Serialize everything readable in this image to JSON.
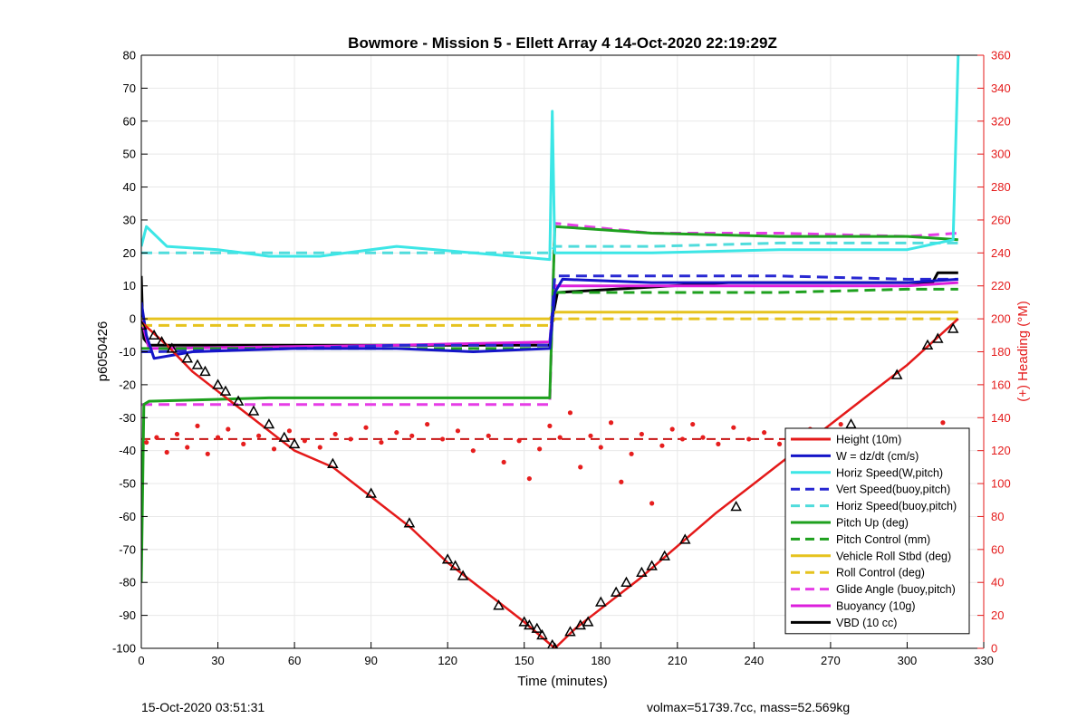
{
  "chart_data": {
    "type": "line",
    "title": "Bowmore - Mission 5 - Ellett Array 4 14-Oct-2020 22:19:29Z",
    "xlabel": "Time (minutes)",
    "ylabel_left": "p6050426",
    "ylabel_right": "(+) Heading (°M)",
    "xlim": [
      0,
      330
    ],
    "ylim_left": [
      -100,
      80
    ],
    "ylim_right": [
      0,
      360
    ],
    "x_ticks": [
      0,
      30,
      60,
      90,
      120,
      150,
      180,
      210,
      240,
      270,
      300,
      330
    ],
    "y_ticks_left": [
      80,
      70,
      60,
      50,
      40,
      30,
      20,
      10,
      0,
      -10,
      -20,
      -30,
      -40,
      -50,
      -60,
      -70,
      -80,
      -90,
      -100
    ],
    "y_ticks_right": [
      360,
      340,
      320,
      300,
      280,
      260,
      240,
      220,
      200,
      180,
      160,
      140,
      120,
      100,
      80,
      60,
      40,
      20,
      0
    ],
    "grid": true,
    "legend_position": "bottom-right",
    "series": [
      {
        "name": "Height (10m)",
        "color": "#e41a1a",
        "style": "solid",
        "x": [
          0,
          10,
          20,
          30,
          45,
          60,
          75,
          90,
          105,
          120,
          135,
          150,
          162,
          170,
          180,
          195,
          210,
          225,
          240,
          255,
          270,
          285,
          300,
          310,
          320
        ],
        "y": [
          -1,
          -8,
          -16,
          -22,
          -31,
          -40,
          -45,
          -54,
          -63,
          -74,
          -83,
          -92,
          -100,
          -94,
          -88,
          -79,
          -69,
          -59,
          -50,
          -41,
          -32,
          -23,
          -14,
          -7,
          0
        ]
      },
      {
        "name": "W = dz/dt (cm/s)",
        "color": "#1414c8",
        "style": "solid",
        "x": [
          0,
          2,
          5,
          20,
          60,
          100,
          130,
          160,
          162,
          165,
          200,
          250,
          300,
          320
        ],
        "y": [
          5,
          -5,
          -12,
          -10,
          -9,
          -9,
          -10,
          -9,
          8,
          12,
          11,
          11,
          11,
          12
        ]
      },
      {
        "name": "Horiz Speed(W,pitch)",
        "color": "#3ce6e6",
        "style": "solid",
        "x": [
          0,
          2,
          10,
          30,
          50,
          70,
          100,
          130,
          160,
          161,
          162,
          165,
          200,
          250,
          300,
          318,
          320
        ],
        "y": [
          22,
          28,
          22,
          21,
          19,
          19,
          22,
          20,
          18,
          63,
          20,
          20,
          20,
          21,
          21,
          24,
          80
        ]
      },
      {
        "name": "Vert Speed(buoy,pitch)",
        "color": "#2828d2",
        "style": "dashed",
        "x": [
          0,
          5,
          60,
          100,
          160,
          162,
          200,
          250,
          300,
          320
        ],
        "y": [
          -10,
          -10,
          -9,
          -8,
          -8,
          13,
          13,
          13,
          12,
          12
        ]
      },
      {
        "name": "Horiz Speed(buoy,pitch)",
        "color": "#50dcdc",
        "style": "dashed",
        "x": [
          0,
          10,
          60,
          100,
          160,
          162,
          200,
          250,
          300,
          320
        ],
        "y": [
          20,
          20,
          20,
          20,
          20,
          22,
          22,
          23,
          23,
          23
        ]
      },
      {
        "name": "Pitch Up (deg)",
        "color": "#1ea01e",
        "style": "solid",
        "x": [
          0,
          1,
          3,
          50,
          100,
          160,
          162,
          200,
          250,
          300,
          320
        ],
        "y": [
          -80,
          -26,
          -25,
          -24,
          -24,
          -24,
          28,
          26,
          25,
          25,
          24
        ]
      },
      {
        "name": "Pitch Control (mm)",
        "color": "#1ea01e",
        "style": "dashed",
        "x": [
          0,
          5,
          100,
          160,
          162,
          200,
          250,
          300,
          320
        ],
        "y": [
          -9,
          -9,
          -9,
          -9,
          8,
          8,
          8,
          9,
          9
        ]
      },
      {
        "name": "Vehicle Roll Stbd (deg)",
        "color": "#e6c31e",
        "style": "solid",
        "x": [
          0,
          10,
          50,
          100,
          160,
          162,
          200,
          250,
          300,
          320
        ],
        "y": [
          0,
          0,
          0,
          0,
          0,
          2,
          2,
          2,
          2,
          2
        ]
      },
      {
        "name": "Roll Control (deg)",
        "color": "#e6c31e",
        "style": "dashed",
        "x": [
          0,
          10,
          100,
          160,
          162,
          200,
          250,
          300,
          320
        ],
        "y": [
          -2,
          -2,
          -2,
          -2,
          0,
          0,
          0,
          0,
          0
        ]
      },
      {
        "name": "Glide Angle (buoy,pitch)",
        "color": "#e63ce6",
        "style": "dashed",
        "x": [
          0,
          2,
          100,
          160,
          162,
          200,
          250,
          300,
          320
        ],
        "y": [
          -26,
          -26,
          -26,
          -26,
          29,
          26,
          26,
          25,
          26
        ]
      },
      {
        "name": "Buoyancy (10g)",
        "color": "#dc1edc",
        "style": "solid",
        "x": [
          0,
          3,
          100,
          160,
          162,
          250,
          300,
          320
        ],
        "y": [
          0,
          -9,
          -8,
          -7,
          10,
          10,
          10,
          11
        ]
      },
      {
        "name": "VBD (10 cc)",
        "color": "#000000",
        "style": "solid",
        "x": [
          0,
          0.5,
          1,
          3,
          160,
          161,
          163,
          230,
          310,
          312,
          320
        ],
        "y": [
          13,
          0,
          -6,
          -8,
          -8,
          0,
          8,
          11,
          11,
          14,
          14
        ]
      }
    ],
    "heading_ref": {
      "color": "#c81414",
      "style": "dashed",
      "value_right": 127,
      "x": [
        0,
        320
      ]
    },
    "heading_points": {
      "color": "#e61e1e",
      "x": [
        2,
        6,
        10,
        14,
        18,
        22,
        26,
        30,
        34,
        40,
        46,
        52,
        58,
        64,
        70,
        76,
        82,
        88,
        94,
        100,
        106,
        112,
        118,
        124,
        130,
        136,
        142,
        148,
        152,
        156,
        160,
        164,
        168,
        172,
        176,
        180,
        184,
        188,
        192,
        196,
        200,
        204,
        208,
        212,
        216,
        220,
        226,
        232,
        238,
        244,
        250,
        256,
        262,
        268,
        274,
        280,
        286,
        292,
        298,
        304,
        310,
        314,
        318
      ],
      "y": [
        125,
        128,
        119,
        130,
        122,
        135,
        118,
        128,
        133,
        124,
        129,
        121,
        132,
        126,
        122,
        130,
        127,
        134,
        125,
        131,
        129,
        136,
        127,
        132,
        120,
        129,
        113,
        126,
        103,
        121,
        135,
        128,
        143,
        110,
        129,
        122,
        137,
        101,
        118,
        130,
        88,
        123,
        133,
        127,
        136,
        128,
        124,
        134,
        127,
        131,
        124,
        130,
        133,
        122,
        136,
        127,
        130,
        124,
        128,
        125,
        120,
        137,
        126
      ]
    },
    "markers": {
      "type": "triangle",
      "x": [
        0,
        5,
        8,
        12,
        18,
        22,
        25,
        30,
        33,
        38,
        44,
        50,
        56,
        60,
        75,
        90,
        105,
        120,
        123,
        126,
        140,
        150,
        152,
        155,
        157,
        161,
        162,
        168,
        172,
        175,
        180,
        186,
        190,
        196,
        200,
        205,
        213,
        233,
        260,
        278,
        296,
        308,
        312,
        318
      ],
      "y": [
        -2,
        -5,
        -7,
        -9,
        -12,
        -14,
        -16,
        -20,
        -22,
        -25,
        -28,
        -32,
        -36,
        -38,
        -44,
        -53,
        -62,
        -73,
        -75,
        -78,
        -87,
        -92,
        -93,
        -94,
        -96,
        -99,
        -100,
        -95,
        -93,
        -92,
        -86,
        -83,
        -80,
        -77,
        -75,
        -72,
        -67,
        -57,
        -42,
        -32,
        -17,
        -8,
        -6,
        -3
      ]
    },
    "legend_entries": [
      "Height (10m)",
      "W = dz/dt (cm/s)",
      "Horiz Speed(W,pitch)",
      "Vert Speed(buoy,pitch)",
      "Horiz Speed(buoy,pitch)",
      "Pitch Up (deg)",
      "Pitch Control (mm)",
      "Vehicle Roll Stbd (deg)",
      "Roll Control (deg)",
      "Glide Angle (buoy,pitch)",
      "Buoyancy (10g)",
      "VBD (10 cc)"
    ]
  },
  "footer": {
    "timestamp": "15-Oct-2020 03:51:31",
    "stats": "volmax=51739.7cc, mass=52.569kg"
  }
}
